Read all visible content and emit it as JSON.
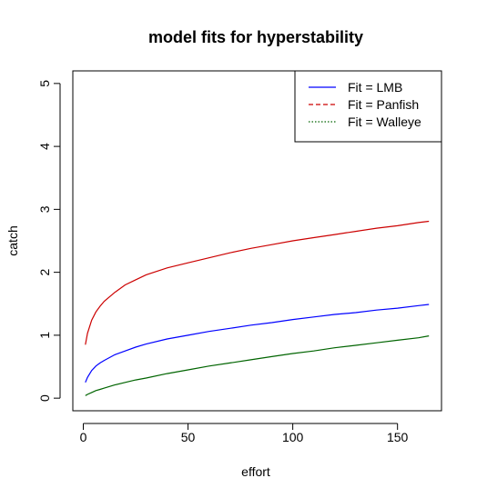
{
  "chart_data": {
    "type": "line",
    "title": "model fits for hyperstability",
    "xlabel": "effort",
    "ylabel": "catch",
    "xlim": [
      -5,
      171
    ],
    "ylim": [
      -0.2,
      5.2
    ],
    "x_ticks": [
      0,
      50,
      100,
      150
    ],
    "y_ticks": [
      0,
      1,
      2,
      3,
      4,
      5
    ],
    "x_tick_labels": [
      "0",
      "50",
      "100",
      "150"
    ],
    "y_tick_labels": [
      "0",
      "1",
      "2",
      "3",
      "4",
      "5"
    ],
    "grid": false,
    "legend_position": "top-right",
    "series": [
      {
        "name": "Fit =  LMB",
        "color": "#0000ff",
        "dash": "solid",
        "x": [
          1,
          2,
          4,
          6,
          8,
          10,
          15,
          20,
          25,
          30,
          40,
          50,
          60,
          70,
          80,
          90,
          100,
          110,
          120,
          130,
          140,
          150,
          160,
          165
        ],
        "y": [
          0.25,
          0.33,
          0.44,
          0.51,
          0.56,
          0.6,
          0.69,
          0.75,
          0.81,
          0.86,
          0.94,
          1.0,
          1.06,
          1.11,
          1.16,
          1.2,
          1.25,
          1.29,
          1.33,
          1.36,
          1.4,
          1.43,
          1.47,
          1.49
        ]
      },
      {
        "name": "Fit =  Panfish",
        "color": "#cc0000",
        "dash": "dashed",
        "x": [
          1,
          2,
          4,
          6,
          8,
          10,
          15,
          20,
          25,
          30,
          40,
          50,
          60,
          70,
          80,
          90,
          100,
          110,
          120,
          130,
          140,
          150,
          160,
          165
        ],
        "y": [
          0.85,
          1.03,
          1.24,
          1.37,
          1.46,
          1.54,
          1.68,
          1.8,
          1.88,
          1.96,
          2.07,
          2.15,
          2.23,
          2.31,
          2.38,
          2.44,
          2.5,
          2.55,
          2.6,
          2.65,
          2.7,
          2.74,
          2.79,
          2.81
        ]
      },
      {
        "name": "Fit =  Walleye",
        "color": "#006400",
        "dash": "dotted",
        "x": [
          1,
          2,
          4,
          6,
          8,
          10,
          15,
          20,
          25,
          30,
          40,
          50,
          60,
          70,
          80,
          90,
          100,
          110,
          120,
          130,
          140,
          150,
          160,
          165
        ],
        "y": [
          0.04,
          0.06,
          0.09,
          0.12,
          0.14,
          0.16,
          0.21,
          0.25,
          0.29,
          0.32,
          0.39,
          0.45,
          0.51,
          0.56,
          0.61,
          0.66,
          0.71,
          0.75,
          0.8,
          0.84,
          0.88,
          0.92,
          0.96,
          0.99
        ]
      }
    ]
  }
}
